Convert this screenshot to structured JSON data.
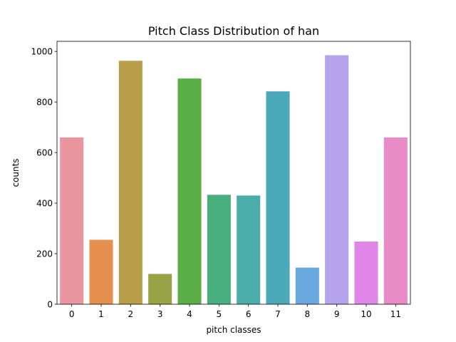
{
  "chart_data": {
    "type": "bar",
    "title": "Pitch Class Distribution of han",
    "xlabel": "pitch classes",
    "ylabel": "counts",
    "categories": [
      "0",
      "1",
      "2",
      "3",
      "4",
      "5",
      "6",
      "7",
      "8",
      "9",
      "10",
      "11"
    ],
    "values": [
      660,
      255,
      963,
      120,
      893,
      433,
      430,
      842,
      145,
      985,
      248,
      660
    ],
    "colors": [
      "#e9959f",
      "#e6904f",
      "#b99d48",
      "#97a347",
      "#5aae45",
      "#48ae7d",
      "#4aada9",
      "#4ba8b8",
      "#69a9df",
      "#b5a4ec",
      "#e086e6",
      "#e88bc6"
    ],
    "ylim": [
      0,
      1040
    ],
    "yticks": [
      0,
      200,
      400,
      600,
      800,
      1000
    ],
    "grid": false,
    "legend": "none"
  }
}
